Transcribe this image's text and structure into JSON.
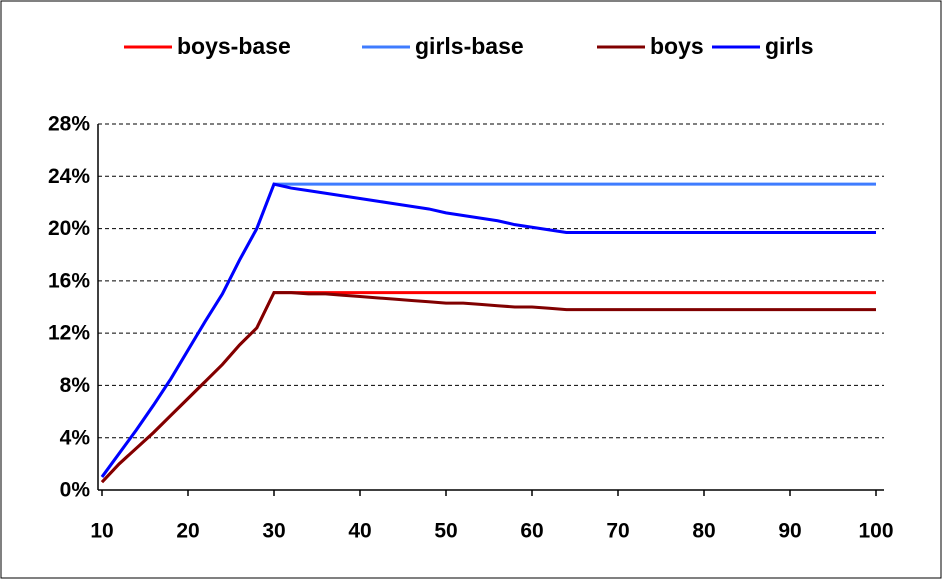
{
  "chart_data": {
    "type": "line",
    "x": [
      10,
      12,
      14,
      16,
      18,
      20,
      22,
      24,
      26,
      28,
      30,
      32,
      34,
      36,
      38,
      40,
      42,
      44,
      46,
      48,
      50,
      52,
      54,
      56,
      58,
      60,
      62,
      64,
      66,
      68,
      70,
      72,
      74,
      76,
      78,
      80,
      82,
      84,
      86,
      88,
      90,
      92,
      94,
      96,
      98,
      100
    ],
    "series": [
      {
        "name": "boys-base",
        "color": "#ff0000",
        "values": [
          0.6,
          2.0,
          3.2,
          4.4,
          5.7,
          7.0,
          8.3,
          9.6,
          11.1,
          12.4,
          15.1,
          15.1,
          15.1,
          15.1,
          15.1,
          15.1,
          15.1,
          15.1,
          15.1,
          15.1,
          15.1,
          15.1,
          15.1,
          15.1,
          15.1,
          15.1,
          15.1,
          15.1,
          15.1,
          15.1,
          15.1,
          15.1,
          15.1,
          15.1,
          15.1,
          15.1,
          15.1,
          15.1,
          15.1,
          15.1,
          15.1,
          15.1,
          15.1,
          15.1,
          15.1,
          15.1
        ]
      },
      {
        "name": "girls-base",
        "color": "#3f7cff",
        "values": [
          1.0,
          2.8,
          4.6,
          6.5,
          8.5,
          10.7,
          12.9,
          15.0,
          17.6,
          20.0,
          23.4,
          23.4,
          23.4,
          23.4,
          23.4,
          23.4,
          23.4,
          23.4,
          23.4,
          23.4,
          23.4,
          23.4,
          23.4,
          23.4,
          23.4,
          23.4,
          23.4,
          23.4,
          23.4,
          23.4,
          23.4,
          23.4,
          23.4,
          23.4,
          23.4,
          23.4,
          23.4,
          23.4,
          23.4,
          23.4,
          23.4,
          23.4,
          23.4,
          23.4,
          23.4,
          23.4
        ]
      },
      {
        "name": "boys",
        "color": "#800000",
        "values": [
          0.6,
          2.0,
          3.2,
          4.4,
          5.7,
          7.0,
          8.3,
          9.6,
          11.1,
          12.4,
          15.1,
          15.1,
          15.0,
          15.0,
          14.9,
          14.8,
          14.7,
          14.6,
          14.5,
          14.4,
          14.3,
          14.3,
          14.2,
          14.1,
          14.0,
          14.0,
          13.9,
          13.8,
          13.8,
          13.8,
          13.8,
          13.8,
          13.8,
          13.8,
          13.8,
          13.8,
          13.8,
          13.8,
          13.8,
          13.8,
          13.8,
          13.8,
          13.8,
          13.8,
          13.8,
          13.8
        ]
      },
      {
        "name": "girls",
        "color": "#0000ff",
        "values": [
          1.0,
          2.8,
          4.6,
          6.5,
          8.5,
          10.7,
          12.9,
          15.0,
          17.6,
          20.0,
          23.4,
          23.1,
          22.9,
          22.7,
          22.5,
          22.3,
          22.1,
          21.9,
          21.7,
          21.5,
          21.2,
          21.0,
          20.8,
          20.6,
          20.3,
          20.1,
          19.9,
          19.7,
          19.7,
          19.7,
          19.7,
          19.7,
          19.7,
          19.7,
          19.7,
          19.7,
          19.7,
          19.7,
          19.7,
          19.7,
          19.7,
          19.7,
          19.7,
          19.7,
          19.7,
          19.7
        ]
      }
    ],
    "xlim": [
      10,
      100
    ],
    "xticks": [
      10,
      20,
      30,
      40,
      50,
      60,
      70,
      80,
      90,
      100
    ],
    "ylim": [
      0,
      28
    ],
    "yticks": [
      {
        "value": 0,
        "label": "0%"
      },
      {
        "value": 4,
        "label": "4%"
      },
      {
        "value": 8,
        "label": "8%"
      },
      {
        "value": 12,
        "label": "12%"
      },
      {
        "value": 16,
        "label": "16%"
      },
      {
        "value": 20,
        "label": "20%"
      },
      {
        "value": 24,
        "label": "24%"
      },
      {
        "value": 28,
        "label": "28%"
      }
    ],
    "grid": true,
    "legend": "top"
  }
}
